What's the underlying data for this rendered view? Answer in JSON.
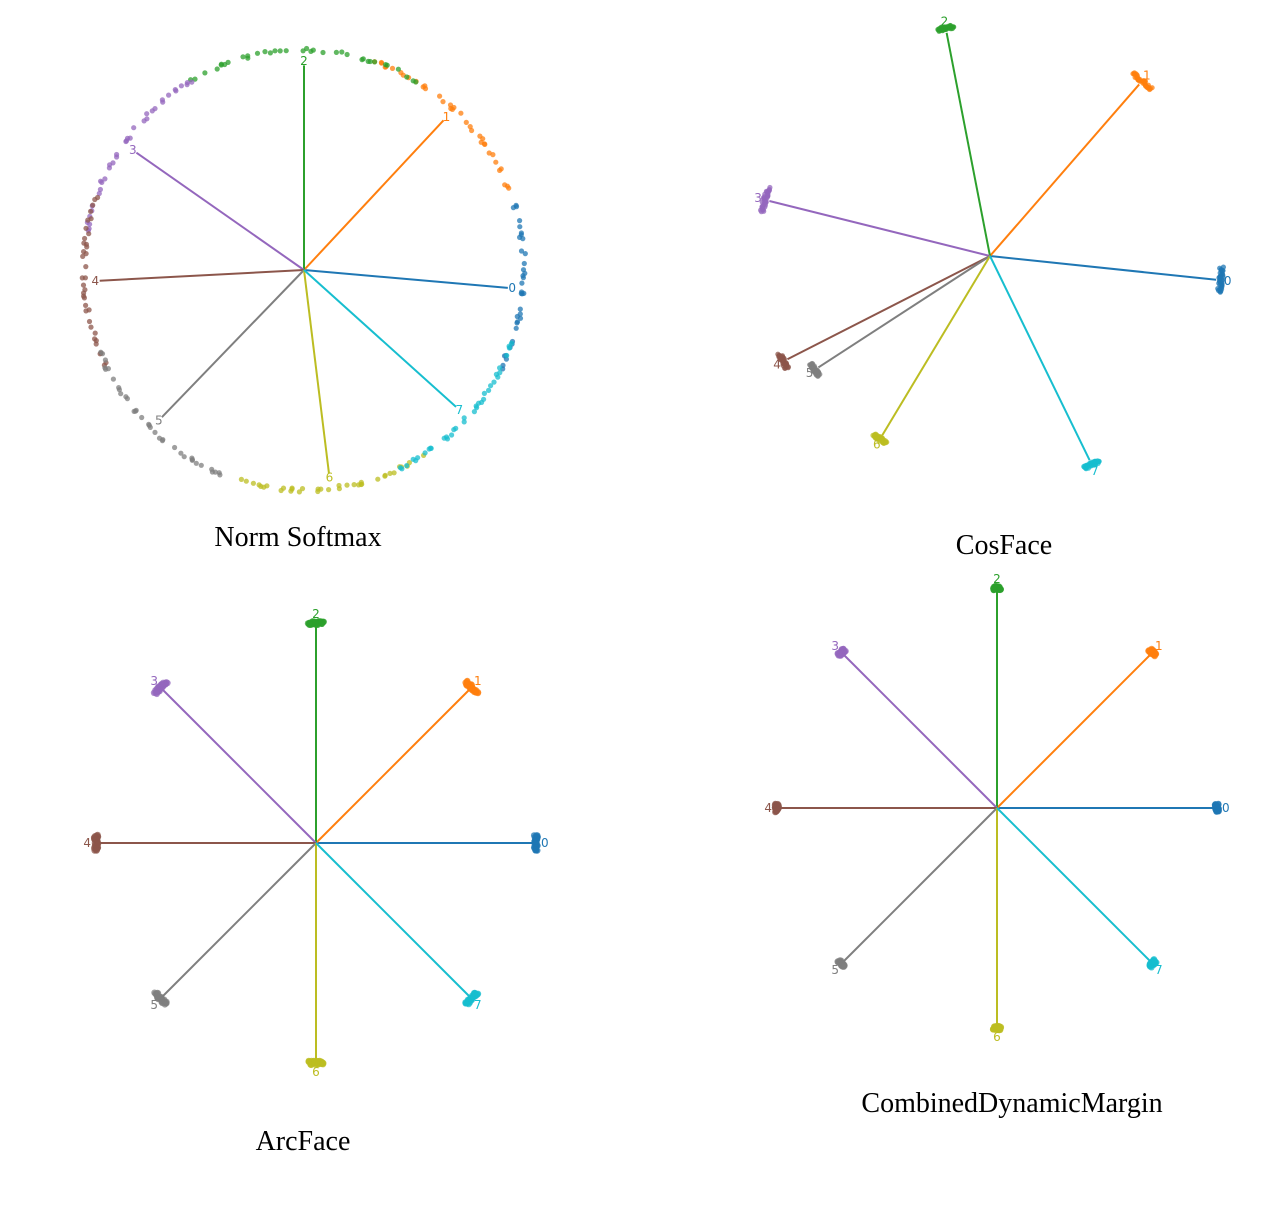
{
  "colors": {
    "0": "#1f77b4",
    "1": "#ff7f0e",
    "2": "#2ca02c",
    "3": "#9467bd",
    "4": "#8c564b",
    "5": "#7f7f7f",
    "6": "#bcbd22",
    "7": "#17becf"
  },
  "chart_data": [
    {
      "type": "scatter",
      "title": "Norm Softmax",
      "classes": [
        {
          "label": "0",
          "angle": -5,
          "radius": 1.0,
          "spread": 22
        },
        {
          "label": "1",
          "angle": 47,
          "radius": 1.0,
          "spread": 26
        },
        {
          "label": "2",
          "angle": 90,
          "radius": 1.0,
          "spread": 30
        },
        {
          "label": "3",
          "angle": 145,
          "radius": 1.0,
          "spread": 26
        },
        {
          "label": "4",
          "angle": 183,
          "radius": 1.0,
          "spread": 22
        },
        {
          "label": "5",
          "angle": 226,
          "radius": 1.0,
          "spread": 24
        },
        {
          "label": "6",
          "angle": 277,
          "radius": 1.0,
          "spread": 24
        },
        {
          "label": "7",
          "angle": 318,
          "radius": 1.0,
          "spread": 22
        }
      ]
    },
    {
      "type": "scatter",
      "title": "CosFace",
      "classes": [
        {
          "label": "0",
          "angle": -6,
          "radius": 1.0,
          "spread": 3
        },
        {
          "label": "1",
          "angle": 49,
          "radius": 1.0,
          "spread": 3
        },
        {
          "label": "2",
          "angle": 101,
          "radius": 1.0,
          "spread": 2
        },
        {
          "label": "3",
          "angle": 166,
          "radius": 1.0,
          "spread": 3
        },
        {
          "label": "4",
          "angle": 207,
          "radius": 1.0,
          "spread": 2
        },
        {
          "label": "5",
          "angle": 213,
          "radius": 0.9,
          "spread": 2
        },
        {
          "label": "6",
          "angle": 239,
          "radius": 0.92,
          "spread": 2
        },
        {
          "label": "7",
          "angle": 296,
          "radius": 1.0,
          "spread": 2
        }
      ]
    },
    {
      "type": "scatter",
      "title": "ArcFace",
      "classes": [
        {
          "label": "0",
          "angle": 0,
          "radius": 1.0,
          "spread": 2
        },
        {
          "label": "1",
          "angle": 45,
          "radius": 1.0,
          "spread": 2
        },
        {
          "label": "2",
          "angle": 90,
          "radius": 1.0,
          "spread": 2
        },
        {
          "label": "3",
          "angle": 135,
          "radius": 1.0,
          "spread": 2
        },
        {
          "label": "4",
          "angle": 180,
          "radius": 1.0,
          "spread": 2
        },
        {
          "label": "5",
          "angle": 225,
          "radius": 1.0,
          "spread": 2
        },
        {
          "label": "6",
          "angle": 270,
          "radius": 1.0,
          "spread": 2
        },
        {
          "label": "7",
          "angle": 315,
          "radius": 1.0,
          "spread": 2
        }
      ]
    },
    {
      "type": "scatter",
      "title": "CombinedDynamicMargin",
      "classes": [
        {
          "label": "0",
          "angle": 0,
          "radius": 1.0,
          "spread": 1
        },
        {
          "label": "1",
          "angle": 45,
          "radius": 1.0,
          "spread": 1
        },
        {
          "label": "2",
          "angle": 90,
          "radius": 1.0,
          "spread": 1
        },
        {
          "label": "3",
          "angle": 135,
          "radius": 1.0,
          "spread": 1
        },
        {
          "label": "4",
          "angle": 180,
          "radius": 1.0,
          "spread": 1
        },
        {
          "label": "5",
          "angle": 225,
          "radius": 1.0,
          "spread": 1
        },
        {
          "label": "6",
          "angle": 270,
          "radius": 1.0,
          "spread": 1
        },
        {
          "label": "7",
          "angle": 315,
          "radius": 1.0,
          "spread": 1
        }
      ]
    }
  ]
}
